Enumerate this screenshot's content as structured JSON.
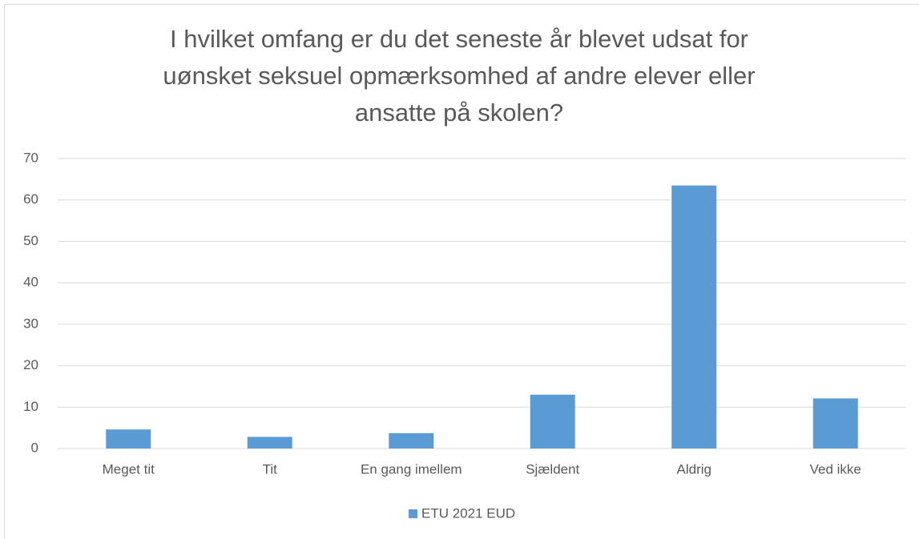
{
  "chart_data": {
    "type": "bar",
    "title": "I hvilket omfang er du det seneste år blevet udsat for uønsket seksuel opmærksomhed af andre elever eller ansatte på skolen?",
    "categories": [
      "Meget tit",
      "Tit",
      "En gang imellem",
      "Sjældent",
      "Aldrig",
      "Ved ikke"
    ],
    "series": [
      {
        "name": "ETU 2021 EUD",
        "color": "#5b9bd5",
        "values": [
          4.6,
          2.8,
          3.7,
          13.0,
          63.5,
          12.1
        ]
      }
    ],
    "ylim": [
      0,
      70
    ],
    "yticks": [
      0,
      10,
      20,
      30,
      40,
      50,
      60,
      70
    ],
    "grid": true,
    "legend": "bottom"
  }
}
